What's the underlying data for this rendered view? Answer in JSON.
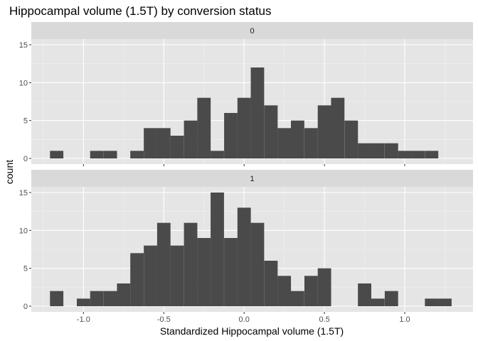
{
  "chart_data": {
    "type": "bar",
    "title": "Hippocampal volume (1.5T) by conversion status",
    "xlabel": "Standardized Hippocampal volume (1.5T)",
    "ylabel": "count",
    "xlim": [
      -1.325,
      1.425
    ],
    "ylim": [
      -0.75,
      15.75
    ],
    "x_ticks": [
      -1.0,
      -0.5,
      0.0,
      0.5,
      1.0
    ],
    "x_tick_labels": [
      "-1.0",
      "-0.5",
      "0.0",
      "0.5",
      "1.0"
    ],
    "y_ticks": [
      0,
      5,
      10,
      15
    ],
    "y_tick_labels": [
      "0",
      "5",
      "10",
      "15"
    ],
    "bin_width": 0.0833,
    "bin_centers": [
      -1.167,
      -1.083,
      -1.0,
      -0.917,
      -0.833,
      -0.75,
      -0.667,
      -0.583,
      -0.5,
      -0.417,
      -0.333,
      -0.25,
      -0.167,
      -0.083,
      0.0,
      0.083,
      0.167,
      0.25,
      0.333,
      0.417,
      0.5,
      0.583,
      0.667,
      0.75,
      0.833,
      0.917,
      1.0,
      1.083,
      1.167,
      1.25
    ],
    "facets": [
      {
        "strip": "0",
        "counts": [
          1,
          0,
          0,
          1,
          1,
          0,
          1,
          4,
          4,
          3,
          5,
          8,
          1,
          6,
          8,
          12,
          7,
          4,
          5,
          4,
          7,
          8,
          5,
          2,
          2,
          2,
          1,
          1,
          1,
          0
        ]
      },
      {
        "strip": "1",
        "counts": [
          2,
          0,
          1,
          2,
          2,
          3,
          7,
          8,
          11,
          8,
          11,
          9,
          15,
          9,
          13,
          11,
          6,
          4,
          2,
          4,
          5,
          0,
          0,
          3,
          1,
          2,
          0,
          0,
          1,
          1
        ]
      }
    ],
    "grid": true,
    "bar_color": "#4a4a4a",
    "panel_background": "#e5e5e5",
    "strip_background": "#d9d9d9"
  }
}
